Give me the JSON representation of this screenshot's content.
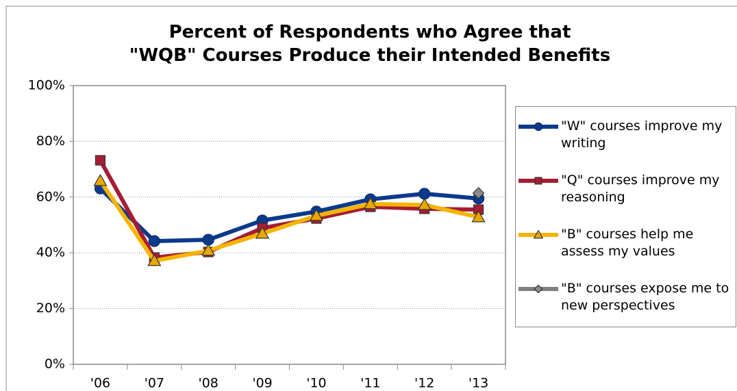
{
  "chart_data": {
    "type": "line",
    "title": "Percent of Respondents who Agree that\n\"WQB\" Courses Produce their Intended Benefits",
    "categories": [
      "'06",
      "'07",
      "'08",
      "'09",
      "'10",
      "'11",
      "'12",
      "'13"
    ],
    "series": [
      {
        "name": "\"W\" courses improve my writing",
        "color": "#0b3a8c",
        "marker": "circle",
        "values": [
          63.1,
          44.2,
          44.7,
          51.6,
          54.8,
          59.2,
          61.2,
          59.5
        ]
      },
      {
        "name": "\"Q\" courses improve my reasoning",
        "color": "#a51d34",
        "marker": "square",
        "values": [
          73.2,
          38.3,
          40.3,
          48.9,
          52.3,
          56.5,
          55.8,
          55.5
        ]
      },
      {
        "name": "\"B\" courses help me assess my values",
        "color": "#f5b400",
        "marker": "triangle",
        "values": [
          65.8,
          37.1,
          40.8,
          46.9,
          53.3,
          57.5,
          57.2,
          52.8
        ]
      },
      {
        "name": "\"B\" courses expose me to new perspectives",
        "color": "#7f7f7f",
        "marker": "diamond",
        "values": [
          null,
          null,
          null,
          null,
          null,
          null,
          null,
          61.4
        ]
      }
    ],
    "ylim": [
      0,
      100
    ],
    "yticks": [
      {
        "value": 0,
        "label": "0%"
      },
      {
        "value": 20,
        "label": "20%"
      },
      {
        "value": 40,
        "label": "40%"
      },
      {
        "value": 60,
        "label": "60%"
      },
      {
        "value": 80,
        "label": "80%"
      },
      {
        "value": 100,
        "label": "100%"
      }
    ],
    "grid": true,
    "legend": "right"
  }
}
